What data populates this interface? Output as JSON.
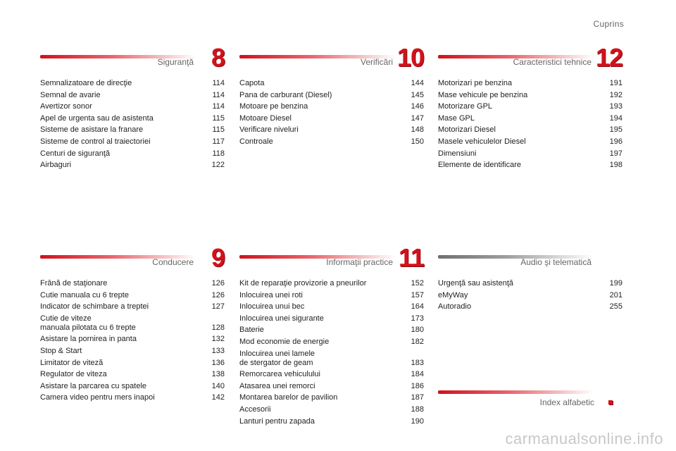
{
  "page": {
    "title": "Cuprins"
  },
  "sections": [
    {
      "title": "Siguranţă",
      "number": "8",
      "entries": [
        {
          "label": "Semnalizatoare de direcţie",
          "page": "114"
        },
        {
          "label": "Semnal de avarie",
          "page": "114"
        },
        {
          "label": "Avertizor sonor",
          "page": "114"
        },
        {
          "label": "Apel de urgenta sau de asistenta",
          "page": "115"
        },
        {
          "label": "Sisteme de asistare la franare",
          "page": "115"
        },
        {
          "label": "Sisteme de control al traiectoriei",
          "page": "117"
        },
        {
          "label": "Centuri de siguranţă",
          "page": "118"
        },
        {
          "label": "Airbaguri",
          "page": "122"
        }
      ]
    },
    {
      "title": "Verificări",
      "number": "10",
      "entries": [
        {
          "label": "Capota",
          "page": "144"
        },
        {
          "label": "Pana de carburant (Diesel)",
          "page": "145"
        },
        {
          "label": "Motoare pe benzina",
          "page": "146"
        },
        {
          "label": "Motoare Diesel",
          "page": "147"
        },
        {
          "label": "Verificare niveluri",
          "page": "148"
        },
        {
          "label": "Controale",
          "page": "150"
        }
      ]
    },
    {
      "title": "Caracteristici tehnice",
      "number": "12",
      "entries": [
        {
          "label": "Motorizari pe benzina",
          "page": "191"
        },
        {
          "label": "Mase vehicule pe benzina",
          "page": "192"
        },
        {
          "label": "Motorizare GPL",
          "page": "193"
        },
        {
          "label": "Mase GPL",
          "page": "194"
        },
        {
          "label": "Motorizari Diesel",
          "page": "195"
        },
        {
          "label": "Masele vehiculelor Diesel",
          "page": "196"
        },
        {
          "label": "Dimensiuni",
          "page": "197"
        },
        {
          "label": "Elemente de identificare",
          "page": "198"
        }
      ]
    },
    {
      "title": "Conducere",
      "number": "9",
      "entries": [
        {
          "label": "Frână de staţionare",
          "page": "126"
        },
        {
          "label": "Cutie manuala cu 6 trepte",
          "page": "126"
        },
        {
          "label": "Indicator de schimbare a treptei",
          "page": "127"
        },
        {
          "label": "Cutie de viteze\n   manuala pilotata cu 6 trepte",
          "page": "128"
        },
        {
          "label": "Asistare la pornirea in panta",
          "page": "132"
        },
        {
          "label": "Stop & Start",
          "page": "133"
        },
        {
          "label": "Limitator de viteză",
          "page": "136"
        },
        {
          "label": "Regulator de viteza",
          "page": "138"
        },
        {
          "label": "Asistare la parcarea cu spatele",
          "page": "140"
        },
        {
          "label": "Camera video pentru mers inapoi",
          "page": "142"
        }
      ]
    },
    {
      "title": "Informaţii practice",
      "number": "11",
      "entries": [
        {
          "label": "Kit de reparaţie provizorie a pneurilor",
          "page": "152"
        },
        {
          "label": "Inlocuirea unei roti",
          "page": "157"
        },
        {
          "label": "Inlocuirea unui bec",
          "page": "164"
        },
        {
          "label": "Inlocuirea unei sigurante",
          "page": "173"
        },
        {
          "label": "Baterie",
          "page": "180"
        },
        {
          "label": "Mod economie de energie",
          "page": "182"
        },
        {
          "label": "Inlocuirea unei lamele\n   de stergator de geam",
          "page": "183"
        },
        {
          "label": "Remorcarea vehiculului",
          "page": "184"
        },
        {
          "label": "Atasarea unei remorci",
          "page": "186"
        },
        {
          "label": "Montarea barelor de pavilion",
          "page": "187"
        },
        {
          "label": "Accesorii",
          "page": "188"
        },
        {
          "label": "Lanturi pentru zapada",
          "page": "190"
        }
      ]
    },
    {
      "title": "Audio şi telematică",
      "number": "",
      "entries": [
        {
          "label": "Urgenţă sau asistenţă",
          "page": "199"
        },
        {
          "label": "eMyWay",
          "page": "201"
        },
        {
          "label": "Autoradio",
          "page": "255"
        }
      ]
    }
  ],
  "index": {
    "title": "Index alfabetic",
    "marker": "."
  },
  "watermark": "carmanualsonline.info",
  "colors": {
    "accent": "#d3121c",
    "gray_bar": "#6f6f6f"
  }
}
